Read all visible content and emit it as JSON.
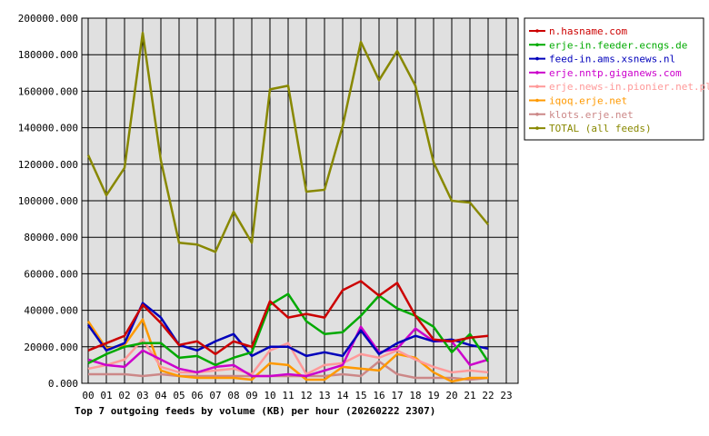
{
  "chart_data": {
    "type": "line",
    "title": "Top 7 outgoing feeds by volume (KB) per hour (20260222 2307)",
    "categories": [
      "00",
      "01",
      "02",
      "03",
      "04",
      "05",
      "06",
      "07",
      "08",
      "09",
      "10",
      "11",
      "12",
      "13",
      "14",
      "15",
      "16",
      "17",
      "18",
      "19",
      "20",
      "21",
      "22",
      "23"
    ],
    "y_ticks": [
      "0.000",
      "20000.000",
      "40000.000",
      "60000.000",
      "80000.000",
      "100000.000",
      "120000.000",
      "140000.000",
      "160000.000",
      "180000.000",
      "200000.000"
    ],
    "ylim": [
      0,
      200000
    ],
    "grid": true,
    "legend_position": "right",
    "series": [
      {
        "name": "n.hasname.com",
        "color": "#cc0000",
        "values": [
          18000,
          22000,
          26000,
          43000,
          33000,
          21000,
          23000,
          16000,
          23000,
          20000,
          45000,
          36000,
          38000,
          36000,
          51000,
          56000,
          48000,
          55000,
          37000,
          24000,
          23000,
          25000,
          26000,
          null
        ]
      },
      {
        "name": "erje-in.feeder.ecngs.de",
        "color": "#00aa00",
        "values": [
          11000,
          16000,
          20000,
          22000,
          22000,
          14000,
          15000,
          10000,
          14000,
          17000,
          43000,
          49000,
          34000,
          27000,
          28000,
          37000,
          48000,
          41000,
          37000,
          31000,
          17000,
          27000,
          12000,
          null
        ]
      },
      {
        "name": "feed-in.ams.xsnews.nl",
        "color": "#0000bb",
        "values": [
          32000,
          18000,
          22000,
          44000,
          36000,
          21000,
          18000,
          23000,
          27000,
          15000,
          20000,
          20000,
          15000,
          17000,
          15000,
          29000,
          16000,
          22000,
          26000,
          23000,
          24000,
          21000,
          19000,
          null
        ]
      },
      {
        "name": "erje.nntp.giganews.com",
        "color": "#cc00cc",
        "values": [
          13000,
          10000,
          9000,
          18000,
          13000,
          8000,
          6000,
          9000,
          10000,
          4000,
          4000,
          5000,
          4000,
          7000,
          10000,
          31000,
          17000,
          19000,
          30000,
          23000,
          23000,
          10000,
          13000,
          null
        ]
      },
      {
        "name": "erje.news-in.pionier.net.pl",
        "color": "#ff9999",
        "values": [
          8000,
          10000,
          13000,
          24000,
          9000,
          6000,
          6000,
          7000,
          8000,
          5000,
          18000,
          22000,
          5000,
          10000,
          11000,
          16000,
          14000,
          18000,
          13000,
          9000,
          6000,
          7000,
          6000,
          null
        ]
      },
      {
        "name": "iqoq.erje.net",
        "color": "#ff9900",
        "values": [
          34000,
          19000,
          21000,
          35000,
          7000,
          4000,
          3000,
          3000,
          3000,
          2000,
          11000,
          10000,
          2000,
          2000,
          9000,
          8000,
          7000,
          16000,
          14000,
          6000,
          1000,
          3000,
          3000,
          null
        ]
      },
      {
        "name": "klots.erje.net",
        "color": "#cc8888",
        "values": [
          5000,
          5000,
          5000,
          4000,
          5000,
          4000,
          4000,
          4000,
          4000,
          4000,
          4000,
          4000,
          4000,
          4000,
          5000,
          4000,
          12000,
          5000,
          3000,
          3000,
          3000,
          2000,
          3000,
          null
        ]
      },
      {
        "name": "TOTAL (all feeds)",
        "color": "#888800",
        "values": [
          125000,
          103000,
          118000,
          192000,
          122000,
          77000,
          76000,
          72000,
          94000,
          77000,
          161000,
          163000,
          105000,
          106000,
          141000,
          187000,
          166000,
          182000,
          163000,
          121000,
          100000,
          99000,
          87000,
          null
        ]
      }
    ]
  }
}
